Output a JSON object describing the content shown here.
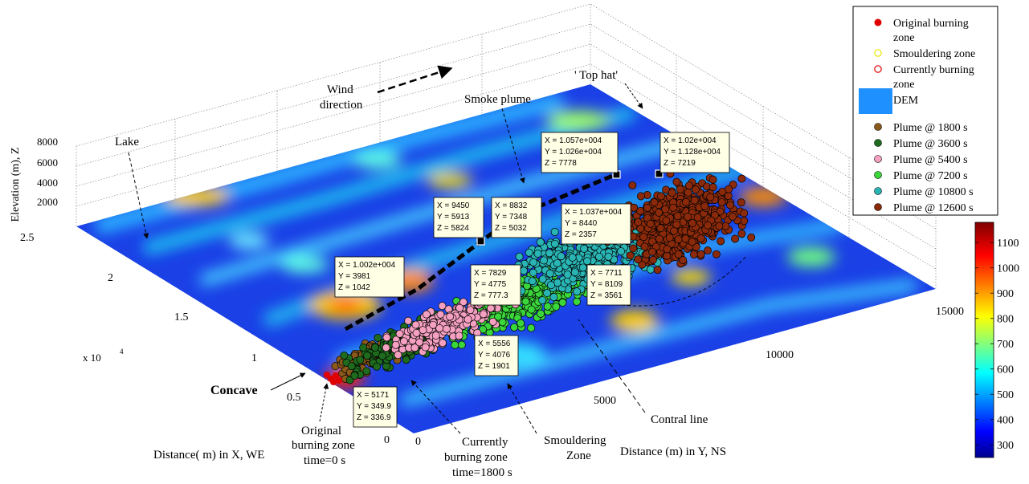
{
  "chart_data": {
    "type": "scatter",
    "subtype": "3d-surface-with-scatter",
    "xlabel": "Distance( m) in X, WE",
    "ylabel": "Distance (m) in Y, NS",
    "zlabel": "Elevation (m), Z",
    "x_multiplier_label": "x 10",
    "x_multiplier_exp": "4",
    "x_ticks": [
      "0",
      "0.5",
      "1",
      "1.5",
      "2",
      "2.5"
    ],
    "y_ticks": [
      "0",
      "5000",
      "10000",
      "15000"
    ],
    "z_ticks": [
      "2000",
      "4000",
      "6000",
      "8000"
    ],
    "xlim": [
      0,
      25000
    ],
    "ylim": [
      0,
      15000
    ],
    "zlim": [
      0,
      8000
    ],
    "legend_position": "top-right",
    "legend": [
      {
        "label": "Original burning zone",
        "line1": "Original burning",
        "line2": "zone",
        "marker": "dot",
        "color": "#e00000"
      },
      {
        "label": "Smouldering zone",
        "line1": "Smouldering zone",
        "line2": "",
        "marker": "ring",
        "color": "#e8e800"
      },
      {
        "label": "Currently burning zone",
        "line1": "Currently burning",
        "line2": "zone",
        "marker": "ring",
        "color": "#e00000"
      },
      {
        "label": "DEM",
        "line1": "DEM",
        "line2": "",
        "marker": "rect",
        "color": "#1e90ff"
      },
      {
        "label": "Plume @ 1800 s",
        "line1": "Plume @ 1800 s",
        "line2": "",
        "marker": "dot",
        "color": "#8b5a1a"
      },
      {
        "label": "Plume @ 3600 s",
        "line1": "Plume @ 3600 s",
        "line2": "",
        "marker": "dot",
        "color": "#1e6b1e"
      },
      {
        "label": "Plume @ 5400 s",
        "line1": "Plume @ 5400 s",
        "line2": "",
        "marker": "dot",
        "color": "#f5a0c0"
      },
      {
        "label": "Plume @ 7200 s",
        "line1": "Plume @ 7200 s",
        "line2": "",
        "marker": "dot",
        "color": "#3ad63a"
      },
      {
        "label": "Plume @ 10800 s",
        "line1": "Plume @ 10800 s",
        "line2": "",
        "marker": "dot",
        "color": "#2ab5b5"
      },
      {
        "label": "Plume @ 12600 s",
        "line1": "Plume @ 12600 s",
        "line2": "",
        "marker": "dot",
        "color": "#8b2a0a"
      }
    ],
    "colorbar": {
      "ticks": [
        "300",
        "400",
        "500",
        "600",
        "700",
        "800",
        "900",
        "1000",
        "1100"
      ],
      "range": [
        250,
        1180
      ]
    },
    "datatips": [
      {
        "x": "X = 1.057e+004",
        "y": "Y = 1.026e+004",
        "z": "Z = 7778"
      },
      {
        "x": "X = 1.02e+004",
        "y": "Y = 1.128e+004",
        "z": "Z = 7219"
      },
      {
        "x": "X = 9450",
        "y": "Y = 5913",
        "z": "Z = 5824"
      },
      {
        "x": "X = 8832",
        "y": "Y = 7348",
        "z": "Z = 5032"
      },
      {
        "x": "X = 1.037e+004",
        "y": "Y = 8440",
        "z": "Z = 2357"
      },
      {
        "x": "X = 1.002e+004",
        "y": "Y = 3981",
        "z": "Z = 1042"
      },
      {
        "x": "X = 7829",
        "y": "Y = 4775",
        "z": "Z = 777.3"
      },
      {
        "x": "X = 7711",
        "y": "Y = 8109",
        "z": "Z = 3561"
      },
      {
        "x": "X = 5556",
        "y": "Y = 4076",
        "z": "Z = 1901"
      },
      {
        "x": "X = 5171",
        "y": "Y = 349.9",
        "z": "Z = 336.9"
      }
    ],
    "annotations": {
      "wind1": "Wind",
      "wind2": "direction",
      "top_hat": "' Top hat'",
      "smoke_plume": "Smoke plume",
      "lake": "Lake",
      "concave": "Concave",
      "original1": "Original",
      "original2": "burning zone",
      "original3": "time=0 s",
      "current1": "Currently",
      "current2": "burning zone",
      "current3": "time=1800 s",
      "smould1": "Smouldering",
      "smould2": "Zone",
      "central": "Contral line"
    }
  }
}
